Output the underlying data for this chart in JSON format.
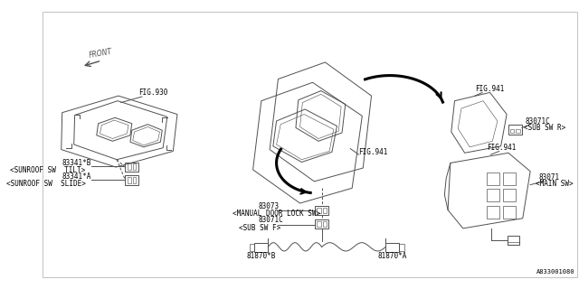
{
  "bg_color": "#ffffff",
  "fig_width": 6.4,
  "fig_height": 3.2,
  "dpi": 100,
  "part_number_bottom": "A833001080",
  "labels": {
    "fig930": "FIG.930",
    "fig941_tr": "FIG.941",
    "fig941_mid": "FIG.941",
    "fig941_br": "FIG.941",
    "part_83341B": "83341*B",
    "label_83341B": "<SUNROOF SW  TILT>",
    "part_83341A": "83341*A",
    "label_83341A": "<SUNROOF SW  SLIDE>",
    "part_83073": "83073",
    "label_83073": "<MANUAL DOOR LOCK SW>",
    "part_83071C_f": "83071C",
    "label_83071C_f": "<SUB SW F>",
    "part_83071C_r": "83071C",
    "label_83071C_r": "<SUB SW R>",
    "part_83071": "83071",
    "label_83071": "<MAIN SW>",
    "part_81870B": "81870*B",
    "part_81870A": "81870*A",
    "front_label": "FRONT"
  },
  "line_color": "#505050",
  "text_color": "#000000",
  "font_size": 5.5
}
